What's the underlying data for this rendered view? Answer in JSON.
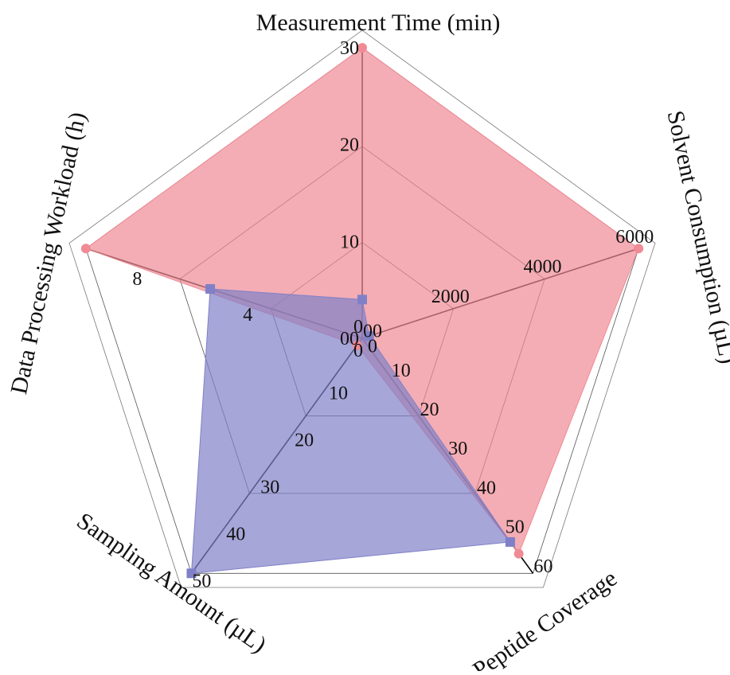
{
  "chart_data": {
    "type": "radar",
    "axes": [
      {
        "id": "time",
        "label": "Measurement Time (min)",
        "max": 30,
        "ticks": [
          "00",
          "10",
          "20",
          "30"
        ]
      },
      {
        "id": "solvent",
        "label": "Solvent Consumption (µL)",
        "max": 6000,
        "ticks": [
          "0",
          "2000",
          "4000",
          "6000"
        ]
      },
      {
        "id": "coverage",
        "label": "Peptide Coverage",
        "max": 60,
        "ticks": [
          "00",
          "10",
          "20",
          "30",
          "40",
          "50",
          "60"
        ]
      },
      {
        "id": "sampling",
        "label": "Sampling Amount (µL)",
        "max": 50,
        "ticks": [
          "0",
          "10",
          "20",
          "30",
          "40",
          "50"
        ]
      },
      {
        "id": "workload",
        "label": "Data Processing Workload (h)",
        "max": 10,
        "ticks": [
          "0",
          "4",
          "8"
        ]
      }
    ],
    "series": [
      {
        "color": "#f08a94",
        "marker": "circle",
        "values": [
          30,
          6000,
          55,
          1.5,
          10
        ]
      },
      {
        "color": "#8080c8",
        "marker": "square",
        "values": [
          4,
          150,
          52,
          50,
          5.5
        ]
      }
    ],
    "grid": true
  }
}
